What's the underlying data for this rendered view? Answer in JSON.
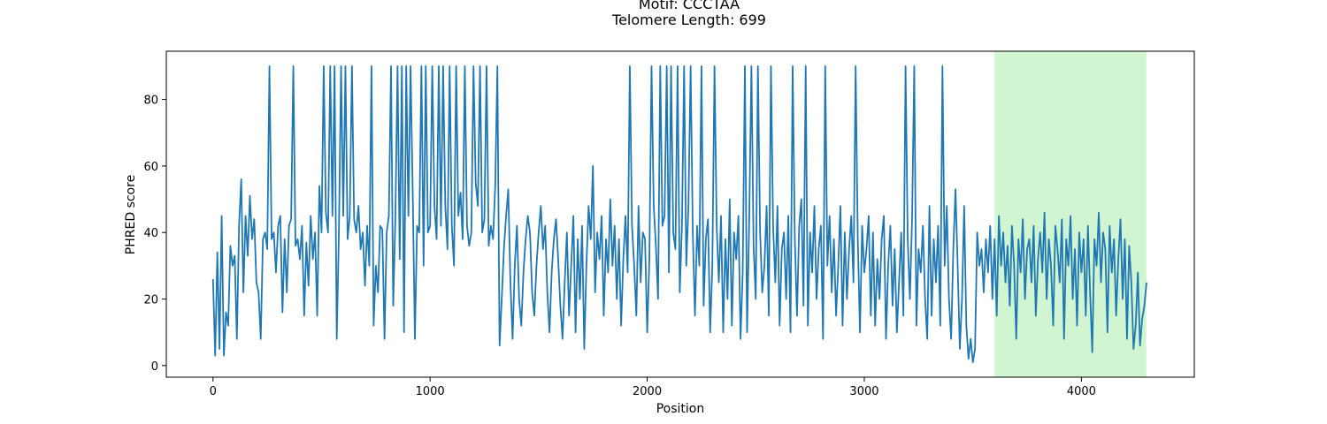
{
  "chart_data": {
    "type": "line",
    "title_lines": [
      "Motif: CCCTAA",
      "Telomere Length: 699"
    ],
    "xlabel": "Position",
    "ylabel": "PHRED score",
    "xlim": [
      -215,
      4520
    ],
    "ylim": [
      -3.5,
      94.5
    ],
    "xticks": [
      0,
      1000,
      2000,
      3000,
      4000
    ],
    "yticks": [
      0,
      20,
      40,
      60,
      80
    ],
    "grid": false,
    "line_color": "#1f77b4",
    "highlight": {
      "color": "#d0f5d0",
      "x_start": 3600,
      "x_end": 4299
    },
    "series": [
      {
        "x": [
          0,
          10,
          20,
          30,
          40,
          50,
          60,
          70,
          80,
          90,
          100,
          110,
          120,
          130,
          140,
          150,
          160,
          170,
          180,
          190,
          200,
          210,
          220,
          230,
          240,
          250,
          260,
          270,
          280,
          290,
          300,
          310,
          320,
          330,
          340,
          350,
          360,
          370,
          380,
          390,
          400,
          410,
          420,
          430,
          440,
          450,
          460,
          470,
          480,
          490,
          500,
          510,
          520,
          530,
          540,
          550,
          560,
          570,
          580,
          590,
          600,
          610,
          620,
          630,
          640,
          650,
          660,
          670,
          680,
          690,
          700,
          710,
          720,
          730,
          740,
          750,
          760,
          770,
          780,
          790,
          800,
          810,
          820,
          830,
          840,
          850,
          860,
          870,
          880,
          890,
          900,
          910,
          920,
          930,
          940,
          950,
          960,
          970,
          980,
          990,
          1000,
          1010,
          1020,
          1030,
          1040,
          1050,
          1060,
          1070,
          1080,
          1090,
          1100,
          1110,
          1120,
          1130,
          1140,
          1150,
          1160,
          1170,
          1180,
          1190,
          1200,
          1210,
          1220,
          1230,
          1240,
          1250,
          1260,
          1270,
          1280,
          1290,
          1300,
          1310,
          1320,
          1330,
          1340,
          1350,
          1360,
          1370,
          1380,
          1390,
          1400,
          1410,
          1420,
          1430,
          1440,
          1450,
          1460,
          1470,
          1480,
          1490,
          1500,
          1510,
          1520,
          1530,
          1540,
          1550,
          1560,
          1570,
          1580,
          1590,
          1600,
          1610,
          1620,
          1630,
          1640,
          1650,
          1660,
          1670,
          1680,
          1690,
          1700,
          1710,
          1720,
          1730,
          1740,
          1750,
          1760,
          1770,
          1780,
          1790,
          1800,
          1810,
          1820,
          1830,
          1840,
          1850,
          1860,
          1870,
          1880,
          1890,
          1900,
          1910,
          1920,
          1930,
          1940,
          1950,
          1960,
          1970,
          1980,
          1990,
          2000,
          2010,
          2020,
          2030,
          2040,
          2050,
          2060,
          2070,
          2080,
          2090,
          2100,
          2110,
          2120,
          2130,
          2140,
          2150,
          2160,
          2170,
          2180,
          2190,
          2200,
          2210,
          2220,
          2230,
          2240,
          2250,
          2260,
          2270,
          2280,
          2290,
          2300,
          2310,
          2320,
          2330,
          2340,
          2350,
          2360,
          2370,
          2380,
          2390,
          2400,
          2410,
          2420,
          2430,
          2440,
          2450,
          2460,
          2470,
          2480,
          2490,
          2500,
          2510,
          2520,
          2530,
          2540,
          2550,
          2560,
          2570,
          2580,
          2590,
          2600,
          2610,
          2620,
          2630,
          2640,
          2650,
          2660,
          2670,
          2680,
          2690,
          2700,
          2710,
          2720,
          2730,
          2740,
          2750,
          2760,
          2770,
          2780,
          2790,
          2800,
          2810,
          2820,
          2830,
          2840,
          2850,
          2860,
          2870,
          2880,
          2890,
          2900,
          2910,
          2920,
          2930,
          2940,
          2950,
          2960,
          2970,
          2980,
          2990,
          3000,
          3010,
          3020,
          3030,
          3040,
          3050,
          3060,
          3070,
          3080,
          3090,
          3100,
          3110,
          3120,
          3130,
          3140,
          3150,
          3160,
          3170,
          3180,
          3190,
          3200,
          3210,
          3220,
          3230,
          3240,
          3250,
          3260,
          3270,
          3280,
          3290,
          3300,
          3310,
          3320,
          3330,
          3340,
          3350,
          3360,
          3370,
          3380,
          3390,
          3400,
          3410,
          3420,
          3430,
          3440,
          3450,
          3460,
          3470,
          3480,
          3490,
          3500,
          3510,
          3520,
          3530,
          3540,
          3550,
          3560,
          3570,
          3580,
          3590,
          3600,
          3610,
          3620,
          3630,
          3640,
          3650,
          3660,
          3670,
          3680,
          3690,
          3700,
          3710,
          3720,
          3730,
          3740,
          3750,
          3760,
          3770,
          3780,
          3790,
          3800,
          3810,
          3820,
          3830,
          3840,
          3850,
          3860,
          3870,
          3880,
          3890,
          3900,
          3910,
          3920,
          3930,
          3940,
          3950,
          3960,
          3970,
          3980,
          3990,
          4000,
          4010,
          4020,
          4030,
          4040,
          4050,
          4060,
          4070,
          4080,
          4090,
          4100,
          4110,
          4120,
          4130,
          4140,
          4150,
          4160,
          4170,
          4180,
          4190,
          4200,
          4210,
          4220,
          4230,
          4240,
          4250,
          4260,
          4270,
          4280,
          4290,
          4300
        ],
        "y": [
          26,
          3,
          34,
          5,
          45,
          3,
          16,
          12,
          36,
          30,
          33,
          8,
          42,
          56,
          22,
          45,
          33,
          51,
          38,
          44,
          25,
          22,
          8,
          38,
          40,
          35,
          90,
          38,
          40,
          28,
          42,
          45,
          16,
          38,
          22,
          42,
          44,
          90,
          36,
          38,
          32,
          42,
          15,
          37,
          24,
          45,
          32,
          40,
          15,
          54,
          40,
          90,
          46,
          40,
          90,
          45,
          90,
          8,
          40,
          90,
          45,
          90,
          38,
          45,
          90,
          44,
          40,
          48,
          35,
          40,
          24,
          42,
          30,
          90,
          12,
          30,
          22,
          42,
          41,
          8,
          40,
          45,
          90,
          18,
          44,
          90,
          32,
          90,
          10,
          90,
          45,
          90,
          52,
          8,
          42,
          40,
          90,
          30,
          90,
          40,
          42,
          90,
          48,
          38,
          90,
          42,
          90,
          48,
          35,
          90,
          42,
          30,
          90,
          45,
          52,
          38,
          90,
          42,
          36,
          40,
          90,
          55,
          48,
          90,
          40,
          44,
          90,
          36,
          42,
          38,
          54,
          90,
          6,
          20,
          35,
          45,
          53,
          25,
          8,
          30,
          42,
          20,
          12,
          28,
          38,
          45,
          40,
          22,
          15,
          30,
          40,
          48,
          35,
          42,
          22,
          10,
          28,
          38,
          44,
          32,
          18,
          8,
          25,
          40,
          15,
          30,
          45,
          10,
          38,
          20,
          42,
          5,
          30,
          48,
          38,
          60,
          22,
          40,
          32,
          45,
          15,
          38,
          28,
          50,
          30,
          42,
          20,
          38,
          12,
          32,
          45,
          28,
          90,
          42,
          30,
          15,
          48,
          25,
          40,
          38,
          10,
          32,
          90,
          48,
          36,
          20,
          90,
          42,
          45,
          90,
          28,
          90,
          40,
          35,
          90,
          22,
          42,
          90,
          30,
          48,
          90,
          40,
          15,
          42,
          30,
          90,
          18,
          38,
          44,
          10,
          30,
          90,
          42,
          25,
          45,
          10,
          38,
          20,
          50,
          12,
          40,
          32,
          45,
          8,
          28,
          90,
          10,
          44,
          90,
          36,
          20,
          90,
          40,
          22,
          30,
          48,
          15,
          90,
          42,
          25,
          48,
          12,
          35,
          40,
          20,
          45,
          10,
          90,
          38,
          15,
          42,
          50,
          18,
          90,
          12,
          40,
          28,
          48,
          20,
          35,
          42,
          8,
          90,
          30,
          45,
          22,
          38,
          15,
          30,
          48,
          12,
          40,
          20,
          35,
          45,
          25,
          90,
          38,
          10,
          42,
          28,
          35,
          45,
          15,
          40,
          12,
          32,
          20,
          38,
          45,
          8,
          30,
          42,
          18,
          35,
          10,
          25,
          40,
          15,
          90,
          38,
          20,
          44,
          90,
          12,
          35,
          28,
          42,
          20,
          8,
          48,
          15,
          38,
          25,
          42,
          12,
          90,
          30,
          48,
          20,
          8,
          35,
          53,
          30,
          5,
          20,
          48,
          12,
          2,
          8,
          1,
          5,
          40,
          30,
          35,
          22,
          38,
          28,
          42,
          20,
          38,
          15,
          45,
          30,
          40,
          25,
          36,
          18,
          42,
          30,
          8,
          38,
          28,
          44,
          20,
          35,
          38,
          25,
          42,
          15,
          32,
          40,
          28,
          46,
          20,
          38,
          30,
          12,
          42,
          35,
          25,
          44,
          8,
          38,
          30,
          45,
          20,
          35,
          12,
          40,
          28,
          38,
          15,
          42,
          22,
          4,
          38,
          30,
          46,
          25,
          40,
          35,
          10,
          42,
          28,
          38,
          15,
          32,
          44,
          20,
          38,
          8,
          36,
          25,
          5,
          12,
          28,
          6,
          14,
          18,
          25
        ]
      }
    ]
  }
}
